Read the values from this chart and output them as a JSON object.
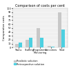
{
  "title": "Comparison of costs per cent",
  "ylabel": "Comparative costs",
  "categories": [
    "Trains",
    "Staffing",
    "Programme\nMonitoring",
    "Outcomes",
    "Total"
  ],
  "series": {
    "Realistic solution": [
      10,
      20,
      50,
      4,
      90
    ],
    "Retrospective solution": [
      13,
      25,
      25,
      3,
      47
    ]
  },
  "colors": {
    "Realistic solution": "#c8c8c8",
    "Retrospective solution": "#4dd0e1"
  },
  "ylim": [
    0,
    100
  ],
  "yticks": [
    0,
    10,
    20,
    30,
    40,
    50,
    60,
    70,
    80,
    90,
    100
  ],
  "background_color": "#f0f0f0",
  "title_fontsize": 3.5,
  "label_fontsize": 2.8,
  "tick_fontsize": 2.5,
  "legend_fontsize": 2.5
}
